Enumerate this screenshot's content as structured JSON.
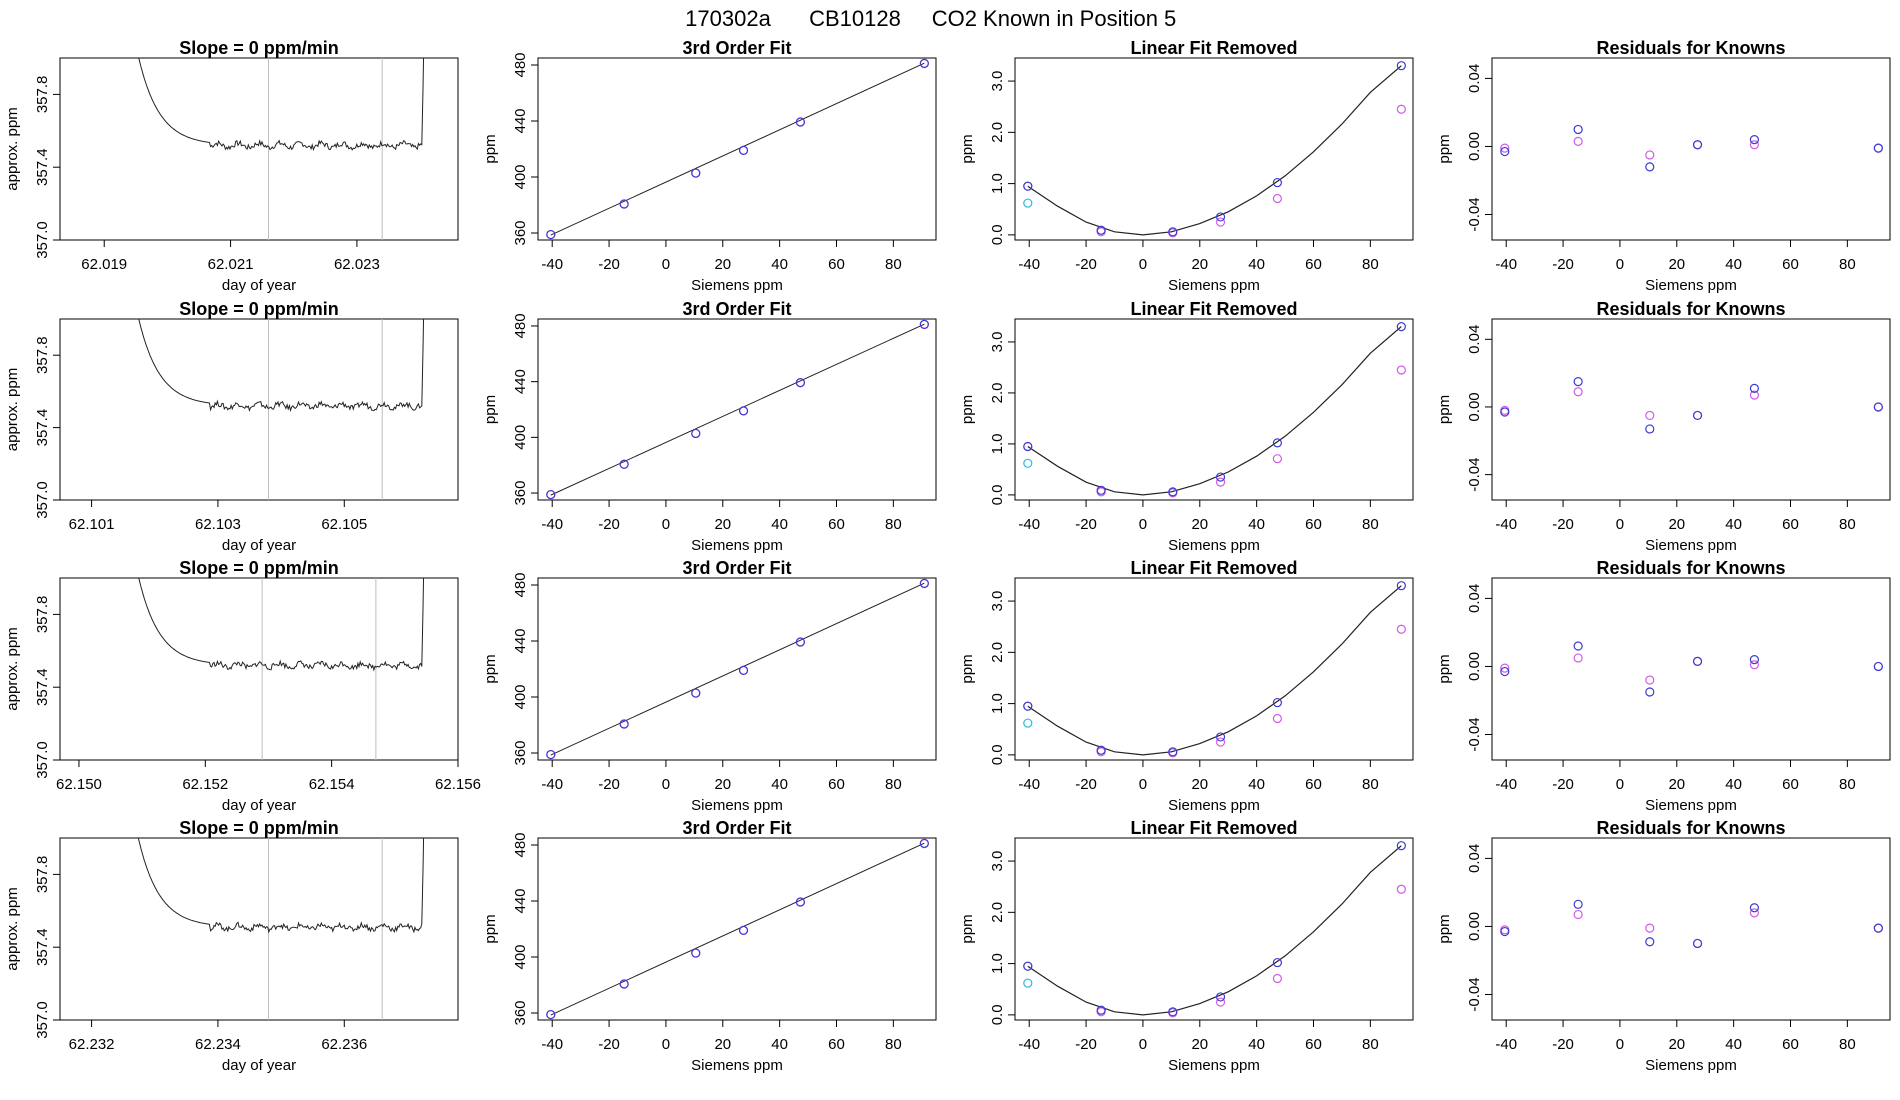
{
  "header": {
    "run": "170302a",
    "cylinder": "CB10128",
    "description": "CO2 Known in Position  5"
  },
  "colors": {
    "series_blue": "#3b3bd0",
    "series_magenta": "#d25ae6",
    "series_cyan": "#29b8e6",
    "trace": "#222222",
    "vline": "#bdbdbd",
    "fit_line": "#222222"
  },
  "chart_data": [
    {
      "type": "line",
      "row": 1,
      "panel": "slope",
      "title": "Slope =  0  ppm/min",
      "xlabel": "day of year",
      "ylabel": "approx. ppm",
      "xlim": [
        62.0183,
        62.0246
      ],
      "ylim": [
        357.0,
        358.0
      ],
      "xticks": [
        "62.019",
        "62.021",
        "62.023"
      ],
      "yticks": [
        "357.0",
        "357.4",
        "357.8"
      ],
      "trace_x_range": [
        62.0194,
        62.0241
      ],
      "plateau": 357.52,
      "vlines": [
        62.0216,
        62.0234
      ]
    },
    {
      "type": "line",
      "row": 2,
      "panel": "slope",
      "title": "Slope =  0  ppm/min",
      "xlabel": "day of year",
      "ylabel": "approx. ppm",
      "xlim": [
        62.1005,
        62.1068
      ],
      "ylim": [
        357.0,
        358.0
      ],
      "xticks": [
        "62.101",
        "62.103",
        "62.105"
      ],
      "yticks": [
        "357.0",
        "357.4",
        "357.8"
      ],
      "trace_x_range": [
        62.1016,
        62.1063
      ],
      "plateau": 357.52,
      "vlines": [
        62.1038,
        62.1056
      ]
    },
    {
      "type": "line",
      "row": 3,
      "panel": "slope",
      "title": "Slope =  0  ppm/min",
      "xlabel": "day of year",
      "ylabel": "approx. ppm",
      "xlim": [
        62.1497,
        62.156
      ],
      "ylim": [
        357.0,
        358.0
      ],
      "xticks": [
        "62.150",
        "62.152",
        "62.154",
        "62.156"
      ],
      "yticks": [
        "357.0",
        "357.4",
        "357.8"
      ],
      "trace_x_range": [
        62.1508,
        62.1555
      ],
      "plateau": 357.52,
      "vlines": [
        62.1529,
        62.1547
      ]
    },
    {
      "type": "line",
      "row": 4,
      "panel": "slope",
      "title": "Slope =  0  ppm/min",
      "xlabel": "day of year",
      "ylabel": "approx. ppm",
      "xlim": [
        62.2315,
        62.2378
      ],
      "ylim": [
        357.0,
        358.0
      ],
      "xticks": [
        "62.232",
        "62.234",
        "62.236"
      ],
      "yticks": [
        "357.0",
        "357.4",
        "357.8"
      ],
      "trace_x_range": [
        62.2326,
        62.2373
      ],
      "plateau": 357.51,
      "vlines": [
        62.2348,
        62.2366
      ]
    },
    {
      "type": "scatter",
      "row": 1,
      "panel": "fit",
      "title": "3rd Order Fit",
      "xlabel": "Siemens ppm",
      "ylabel": "ppm",
      "xlim": [
        -45,
        95
      ],
      "ylim": [
        355,
        485
      ],
      "xticks": [
        "-40",
        "-20",
        "0",
        "20",
        "40",
        "60",
        "80"
      ],
      "yticks": [
        "360",
        "400",
        "440",
        "480"
      ],
      "x": [
        -40.5,
        -14.7,
        10.5,
        27.3,
        47.3,
        90.9
      ],
      "series": [
        {
          "name": "blue",
          "values": [
            358.9,
            380.7,
            402.8,
            419.0,
            439.3,
            481.2
          ]
        },
        {
          "name": "magenta",
          "values": [
            358.9,
            380.7,
            402.8,
            419.0,
            439.3,
            481.0
          ]
        }
      ],
      "fit_line": {
        "x": [
          -40.5,
          90.9
        ],
        "y": [
          358.5,
          481.3
        ]
      }
    },
    {
      "type": "scatter",
      "row": 2,
      "panel": "fit",
      "title": "3rd Order Fit",
      "xlabel": "Siemens ppm",
      "ylabel": "ppm",
      "xlim": [
        -45,
        95
      ],
      "ylim": [
        355,
        485
      ],
      "xticks": [
        "-40",
        "-20",
        "0",
        "20",
        "40",
        "60",
        "80"
      ],
      "yticks": [
        "360",
        "400",
        "440",
        "480"
      ],
      "x": [
        -40.5,
        -14.7,
        10.5,
        27.3,
        47.3,
        90.9
      ],
      "series": [
        {
          "name": "blue",
          "values": [
            358.9,
            380.7,
            402.8,
            419.0,
            439.3,
            481.2
          ]
        },
        {
          "name": "magenta",
          "values": [
            358.9,
            380.7,
            402.8,
            419.0,
            439.3,
            481.0
          ]
        }
      ],
      "fit_line": {
        "x": [
          -40.5,
          90.9
        ],
        "y": [
          358.5,
          481.3
        ]
      }
    },
    {
      "type": "scatter",
      "row": 3,
      "panel": "fit",
      "title": "3rd Order Fit",
      "xlabel": "Siemens ppm",
      "ylabel": "ppm",
      "xlim": [
        -45,
        95
      ],
      "ylim": [
        355,
        485
      ],
      "xticks": [
        "-40",
        "-20",
        "0",
        "20",
        "40",
        "60",
        "80"
      ],
      "yticks": [
        "360",
        "400",
        "440",
        "480"
      ],
      "x": [
        -40.5,
        -14.7,
        10.5,
        27.3,
        47.3,
        90.9
      ],
      "series": [
        {
          "name": "blue",
          "values": [
            358.9,
            380.7,
            402.8,
            419.0,
            439.3,
            481.2
          ]
        },
        {
          "name": "magenta",
          "values": [
            358.9,
            380.7,
            402.8,
            419.0,
            439.3,
            481.0
          ]
        }
      ],
      "fit_line": {
        "x": [
          -40.5,
          90.9
        ],
        "y": [
          358.5,
          481.3
        ]
      }
    },
    {
      "type": "scatter",
      "row": 4,
      "panel": "fit",
      "title": "3rd Order Fit",
      "xlabel": "Siemens ppm",
      "ylabel": "ppm",
      "xlim": [
        -45,
        95
      ],
      "ylim": [
        355,
        485
      ],
      "xticks": [
        "-40",
        "-20",
        "0",
        "20",
        "40",
        "60",
        "80"
      ],
      "yticks": [
        "360",
        "400",
        "440",
        "480"
      ],
      "x": [
        -40.5,
        -14.7,
        10.5,
        27.3,
        47.3,
        90.9
      ],
      "series": [
        {
          "name": "blue",
          "values": [
            358.9,
            380.7,
            402.8,
            419.0,
            439.3,
            481.2
          ]
        },
        {
          "name": "magenta",
          "values": [
            358.9,
            380.7,
            402.8,
            419.0,
            439.3,
            481.0
          ]
        }
      ],
      "fit_line": {
        "x": [
          -40.5,
          90.9
        ],
        "y": [
          358.5,
          481.3
        ]
      }
    },
    {
      "type": "scatter",
      "row": 1,
      "panel": "linear_removed",
      "title": "Linear Fit Removed",
      "xlabel": "Siemens ppm",
      "ylabel": "ppm",
      "xlim": [
        -45,
        95
      ],
      "ylim": [
        -0.1,
        3.45
      ],
      "xticks": [
        "-40",
        "-20",
        "0",
        "20",
        "40",
        "60",
        "80"
      ],
      "yticks": [
        "0.0",
        "1.0",
        "2.0",
        "3.0"
      ],
      "x": [
        -40.5,
        -14.7,
        10.5,
        27.3,
        47.3,
        90.9
      ],
      "series": [
        {
          "name": "blue",
          "values": [
            0.95,
            0.09,
            0.06,
            0.35,
            1.02,
            3.3
          ]
        },
        {
          "name": "magenta",
          "values": [
            0.95,
            0.06,
            0.04,
            0.25,
            0.71,
            2.45
          ]
        },
        {
          "name": "cyan",
          "values": [
            0.62
          ]
        }
      ],
      "curve": {
        "x": [
          -40.5,
          -30,
          -20,
          -10,
          0,
          10,
          20,
          30,
          40,
          50,
          60,
          70,
          80,
          90.9
        ],
        "y": [
          0.95,
          0.56,
          0.25,
          0.06,
          0.0,
          0.06,
          0.22,
          0.45,
          0.76,
          1.15,
          1.62,
          2.16,
          2.78,
          3.3
        ]
      }
    },
    {
      "type": "scatter",
      "row": 2,
      "panel": "linear_removed",
      "title": "Linear Fit Removed",
      "xlabel": "Siemens ppm",
      "ylabel": "ppm",
      "xlim": [
        -45,
        95
      ],
      "ylim": [
        -0.1,
        3.45
      ],
      "xticks": [
        "-40",
        "-20",
        "0",
        "20",
        "40",
        "60",
        "80"
      ],
      "yticks": [
        "0.0",
        "1.0",
        "2.0",
        "3.0"
      ],
      "x": [
        -40.5,
        -14.7,
        10.5,
        27.3,
        47.3,
        90.9
      ],
      "series": [
        {
          "name": "blue",
          "values": [
            0.95,
            0.09,
            0.06,
            0.35,
            1.02,
            3.3
          ]
        },
        {
          "name": "magenta",
          "values": [
            0.95,
            0.06,
            0.04,
            0.25,
            0.71,
            2.45
          ]
        },
        {
          "name": "cyan",
          "values": [
            0.62
          ]
        }
      ],
      "curve": {
        "x": [
          -40.5,
          -30,
          -20,
          -10,
          0,
          10,
          20,
          30,
          40,
          50,
          60,
          70,
          80,
          90.9
        ],
        "y": [
          0.95,
          0.56,
          0.25,
          0.06,
          0.0,
          0.06,
          0.22,
          0.45,
          0.76,
          1.15,
          1.62,
          2.16,
          2.78,
          3.3
        ]
      }
    },
    {
      "type": "scatter",
      "row": 3,
      "panel": "linear_removed",
      "title": "Linear Fit Removed",
      "xlabel": "Siemens ppm",
      "ylabel": "ppm",
      "xlim": [
        -45,
        95
      ],
      "ylim": [
        -0.1,
        3.45
      ],
      "xticks": [
        "-40",
        "-20",
        "0",
        "20",
        "40",
        "60",
        "80"
      ],
      "yticks": [
        "0.0",
        "1.0",
        "2.0",
        "3.0"
      ],
      "x": [
        -40.5,
        -14.7,
        10.5,
        27.3,
        47.3,
        90.9
      ],
      "series": [
        {
          "name": "blue",
          "values": [
            0.95,
            0.09,
            0.06,
            0.35,
            1.02,
            3.3
          ]
        },
        {
          "name": "magenta",
          "values": [
            0.95,
            0.06,
            0.04,
            0.25,
            0.71,
            2.45
          ]
        },
        {
          "name": "cyan",
          "values": [
            0.62
          ]
        }
      ],
      "curve": {
        "x": [
          -40.5,
          -30,
          -20,
          -10,
          0,
          10,
          20,
          30,
          40,
          50,
          60,
          70,
          80,
          90.9
        ],
        "y": [
          0.95,
          0.56,
          0.25,
          0.06,
          0.0,
          0.06,
          0.22,
          0.45,
          0.76,
          1.15,
          1.62,
          2.16,
          2.78,
          3.3
        ]
      }
    },
    {
      "type": "scatter",
      "row": 4,
      "panel": "linear_removed",
      "title": "Linear Fit Removed",
      "xlabel": "Siemens ppm",
      "ylabel": "ppm",
      "xlim": [
        -45,
        95
      ],
      "ylim": [
        -0.1,
        3.45
      ],
      "xticks": [
        "-40",
        "-20",
        "0",
        "20",
        "40",
        "60",
        "80"
      ],
      "yticks": [
        "0.0",
        "1.0",
        "2.0",
        "3.0"
      ],
      "x": [
        -40.5,
        -14.7,
        10.5,
        27.3,
        47.3,
        90.9
      ],
      "series": [
        {
          "name": "blue",
          "values": [
            0.95,
            0.09,
            0.06,
            0.35,
            1.02,
            3.3
          ]
        },
        {
          "name": "magenta",
          "values": [
            0.95,
            0.06,
            0.04,
            0.25,
            0.71,
            2.45
          ]
        },
        {
          "name": "cyan",
          "values": [
            0.62
          ]
        }
      ],
      "curve": {
        "x": [
          -40.5,
          -30,
          -20,
          -10,
          0,
          10,
          20,
          30,
          40,
          50,
          60,
          70,
          80,
          90.9
        ],
        "y": [
          0.95,
          0.56,
          0.25,
          0.06,
          0.0,
          0.06,
          0.22,
          0.45,
          0.76,
          1.15,
          1.62,
          2.16,
          2.78,
          3.3
        ]
      }
    },
    {
      "type": "scatter",
      "row": 1,
      "panel": "residuals",
      "title": "Residuals for Knowns",
      "xlabel": "Siemens ppm",
      "ylabel": "ppm",
      "xlim": [
        -45,
        95
      ],
      "ylim": [
        -0.055,
        0.052
      ],
      "xticks": [
        "-40",
        "-20",
        "0",
        "20",
        "40",
        "60",
        "80"
      ],
      "yticks": [
        "-0.04",
        "0.00",
        "0.04"
      ],
      "x": [
        -40.5,
        -14.7,
        10.5,
        27.3,
        47.3,
        90.9
      ],
      "series": [
        {
          "name": "blue",
          "values": [
            -0.003,
            0.01,
            -0.012,
            0.001,
            0.004,
            -0.001
          ]
        },
        {
          "name": "magenta",
          "values": [
            -0.001,
            0.003,
            -0.005,
            0.001,
            0.001,
            -0.001
          ]
        }
      ]
    },
    {
      "type": "scatter",
      "row": 2,
      "panel": "residuals",
      "title": "Residuals for Knowns",
      "xlabel": "Siemens ppm",
      "ylabel": "ppm",
      "xlim": [
        -45,
        95
      ],
      "ylim": [
        -0.055,
        0.052
      ],
      "xticks": [
        "-40",
        "-20",
        "0",
        "20",
        "40",
        "60",
        "80"
      ],
      "yticks": [
        "-0.04",
        "0.00",
        "0.04"
      ],
      "x": [
        -40.5,
        -14.7,
        10.5,
        27.3,
        47.3,
        90.9
      ],
      "series": [
        {
          "name": "blue",
          "values": [
            -0.003,
            0.015,
            -0.013,
            -0.005,
            0.011,
            0.0
          ]
        },
        {
          "name": "magenta",
          "values": [
            -0.002,
            0.009,
            -0.005,
            -0.005,
            0.007,
            0.0
          ]
        }
      ]
    },
    {
      "type": "scatter",
      "row": 3,
      "panel": "residuals",
      "title": "Residuals for Knowns",
      "xlabel": "Siemens ppm",
      "ylabel": "ppm",
      "xlim": [
        -45,
        95
      ],
      "ylim": [
        -0.055,
        0.052
      ],
      "xticks": [
        "-40",
        "-20",
        "0",
        "20",
        "40",
        "60",
        "80"
      ],
      "yticks": [
        "-0.04",
        "0.00",
        "0.04"
      ],
      "x": [
        -40.5,
        -14.7,
        10.5,
        27.3,
        47.3,
        90.9
      ],
      "series": [
        {
          "name": "blue",
          "values": [
            -0.003,
            0.012,
            -0.015,
            0.003,
            0.004,
            0.0
          ]
        },
        {
          "name": "magenta",
          "values": [
            -0.001,
            0.005,
            -0.008,
            0.003,
            0.001,
            0.0
          ]
        }
      ]
    },
    {
      "type": "scatter",
      "row": 4,
      "panel": "residuals",
      "title": "Residuals for Knowns",
      "xlabel": "Siemens ppm",
      "ylabel": "ppm",
      "xlim": [
        -45,
        95
      ],
      "ylim": [
        -0.055,
        0.052
      ],
      "xticks": [
        "-40",
        "-20",
        "0",
        "20",
        "40",
        "60",
        "80"
      ],
      "yticks": [
        "-0.04",
        "0.00",
        "0.04"
      ],
      "x": [
        -40.5,
        -14.7,
        10.5,
        27.3,
        47.3,
        90.9
      ],
      "series": [
        {
          "name": "blue",
          "values": [
            -0.003,
            0.013,
            -0.009,
            -0.01,
            0.011,
            -0.001
          ]
        },
        {
          "name": "magenta",
          "values": [
            -0.002,
            0.007,
            -0.001,
            -0.01,
            0.008,
            -0.001
          ]
        }
      ]
    }
  ]
}
